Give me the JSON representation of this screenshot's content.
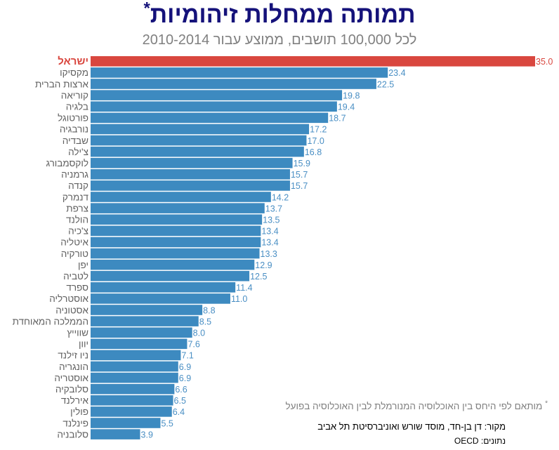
{
  "header": {
    "title": "תמותה ממחלות זיהומיות",
    "title_mark": "*",
    "subtitle": "לכל 100,000 תושבים, ממוצע עבור 2010-2014"
  },
  "footer": {
    "footnote_mark": "*",
    "footnote": "מותאם לפי היחס בין האוכלוסיה המנורמלת לבין האוכלוסיה בפועל",
    "source": "מקור:  דן בן-חד, מוסד שורש ואוניברסיטת תל אביב",
    "data_source": "נתונים: OECD"
  },
  "colors": {
    "bar": "#3d8ac0",
    "highlight": "#d9473f"
  },
  "chart_data": {
    "type": "bar",
    "orientation": "horizontal",
    "title": "תמותה ממחלות זיהומיות",
    "subtitle": "לכל 100,000 תושבים, ממוצע עבור 2010-2014",
    "xlim": [
      0,
      35
    ],
    "highlight_category": "ישראל",
    "categories": [
      "ישראל",
      "מקסיקו",
      "ארצות הברית",
      "קוריאה",
      "בלגיה",
      "פורטוגל",
      "נורבגיה",
      "שבדיה",
      "צ'ילה",
      "לוקסמבורג",
      "גרמניה",
      "קנדה",
      "דנמרק",
      "צרפת",
      "הולנד",
      "צ'כיה",
      "איטליה",
      "טורקיה",
      "יפן",
      "לטביה",
      "ספרד",
      "אוסטרליה",
      "אסטוניה",
      "הממלכה המאוחדת",
      "שווייץ",
      "יוון",
      "ניו זילנד",
      "הונגריה",
      "אוסטריה",
      "סלובקיה",
      "אירלנד",
      "פולין",
      "פינלנד",
      "סלובניה"
    ],
    "value_labels": [
      "35.0",
      "23.4",
      "22.5",
      "19.8",
      "19.4",
      "18.7",
      "17.2",
      "17.0",
      "16.8",
      "15.9",
      "15.7",
      "15.7",
      "14.2",
      "13.7",
      "13.5",
      "13.4",
      "13.4",
      "13.3",
      "12.9",
      "12.5",
      "11.4",
      "11.0",
      "8.8",
      "8.5",
      "8.0",
      "7.6",
      "7.1",
      "6.9",
      "6.9",
      "6.6",
      "6.5",
      "6.4",
      "5.5",
      "3.9"
    ],
    "values": [
      35.0,
      23.4,
      22.5,
      19.8,
      19.4,
      18.7,
      17.2,
      17.0,
      16.8,
      15.9,
      15.7,
      15.7,
      14.2,
      13.7,
      13.5,
      13.4,
      13.4,
      13.3,
      12.9,
      12.5,
      11.4,
      11.0,
      8.8,
      8.5,
      8.0,
      7.6,
      7.1,
      6.9,
      6.9,
      6.6,
      6.5,
      6.4,
      5.5,
      3.9
    ]
  }
}
